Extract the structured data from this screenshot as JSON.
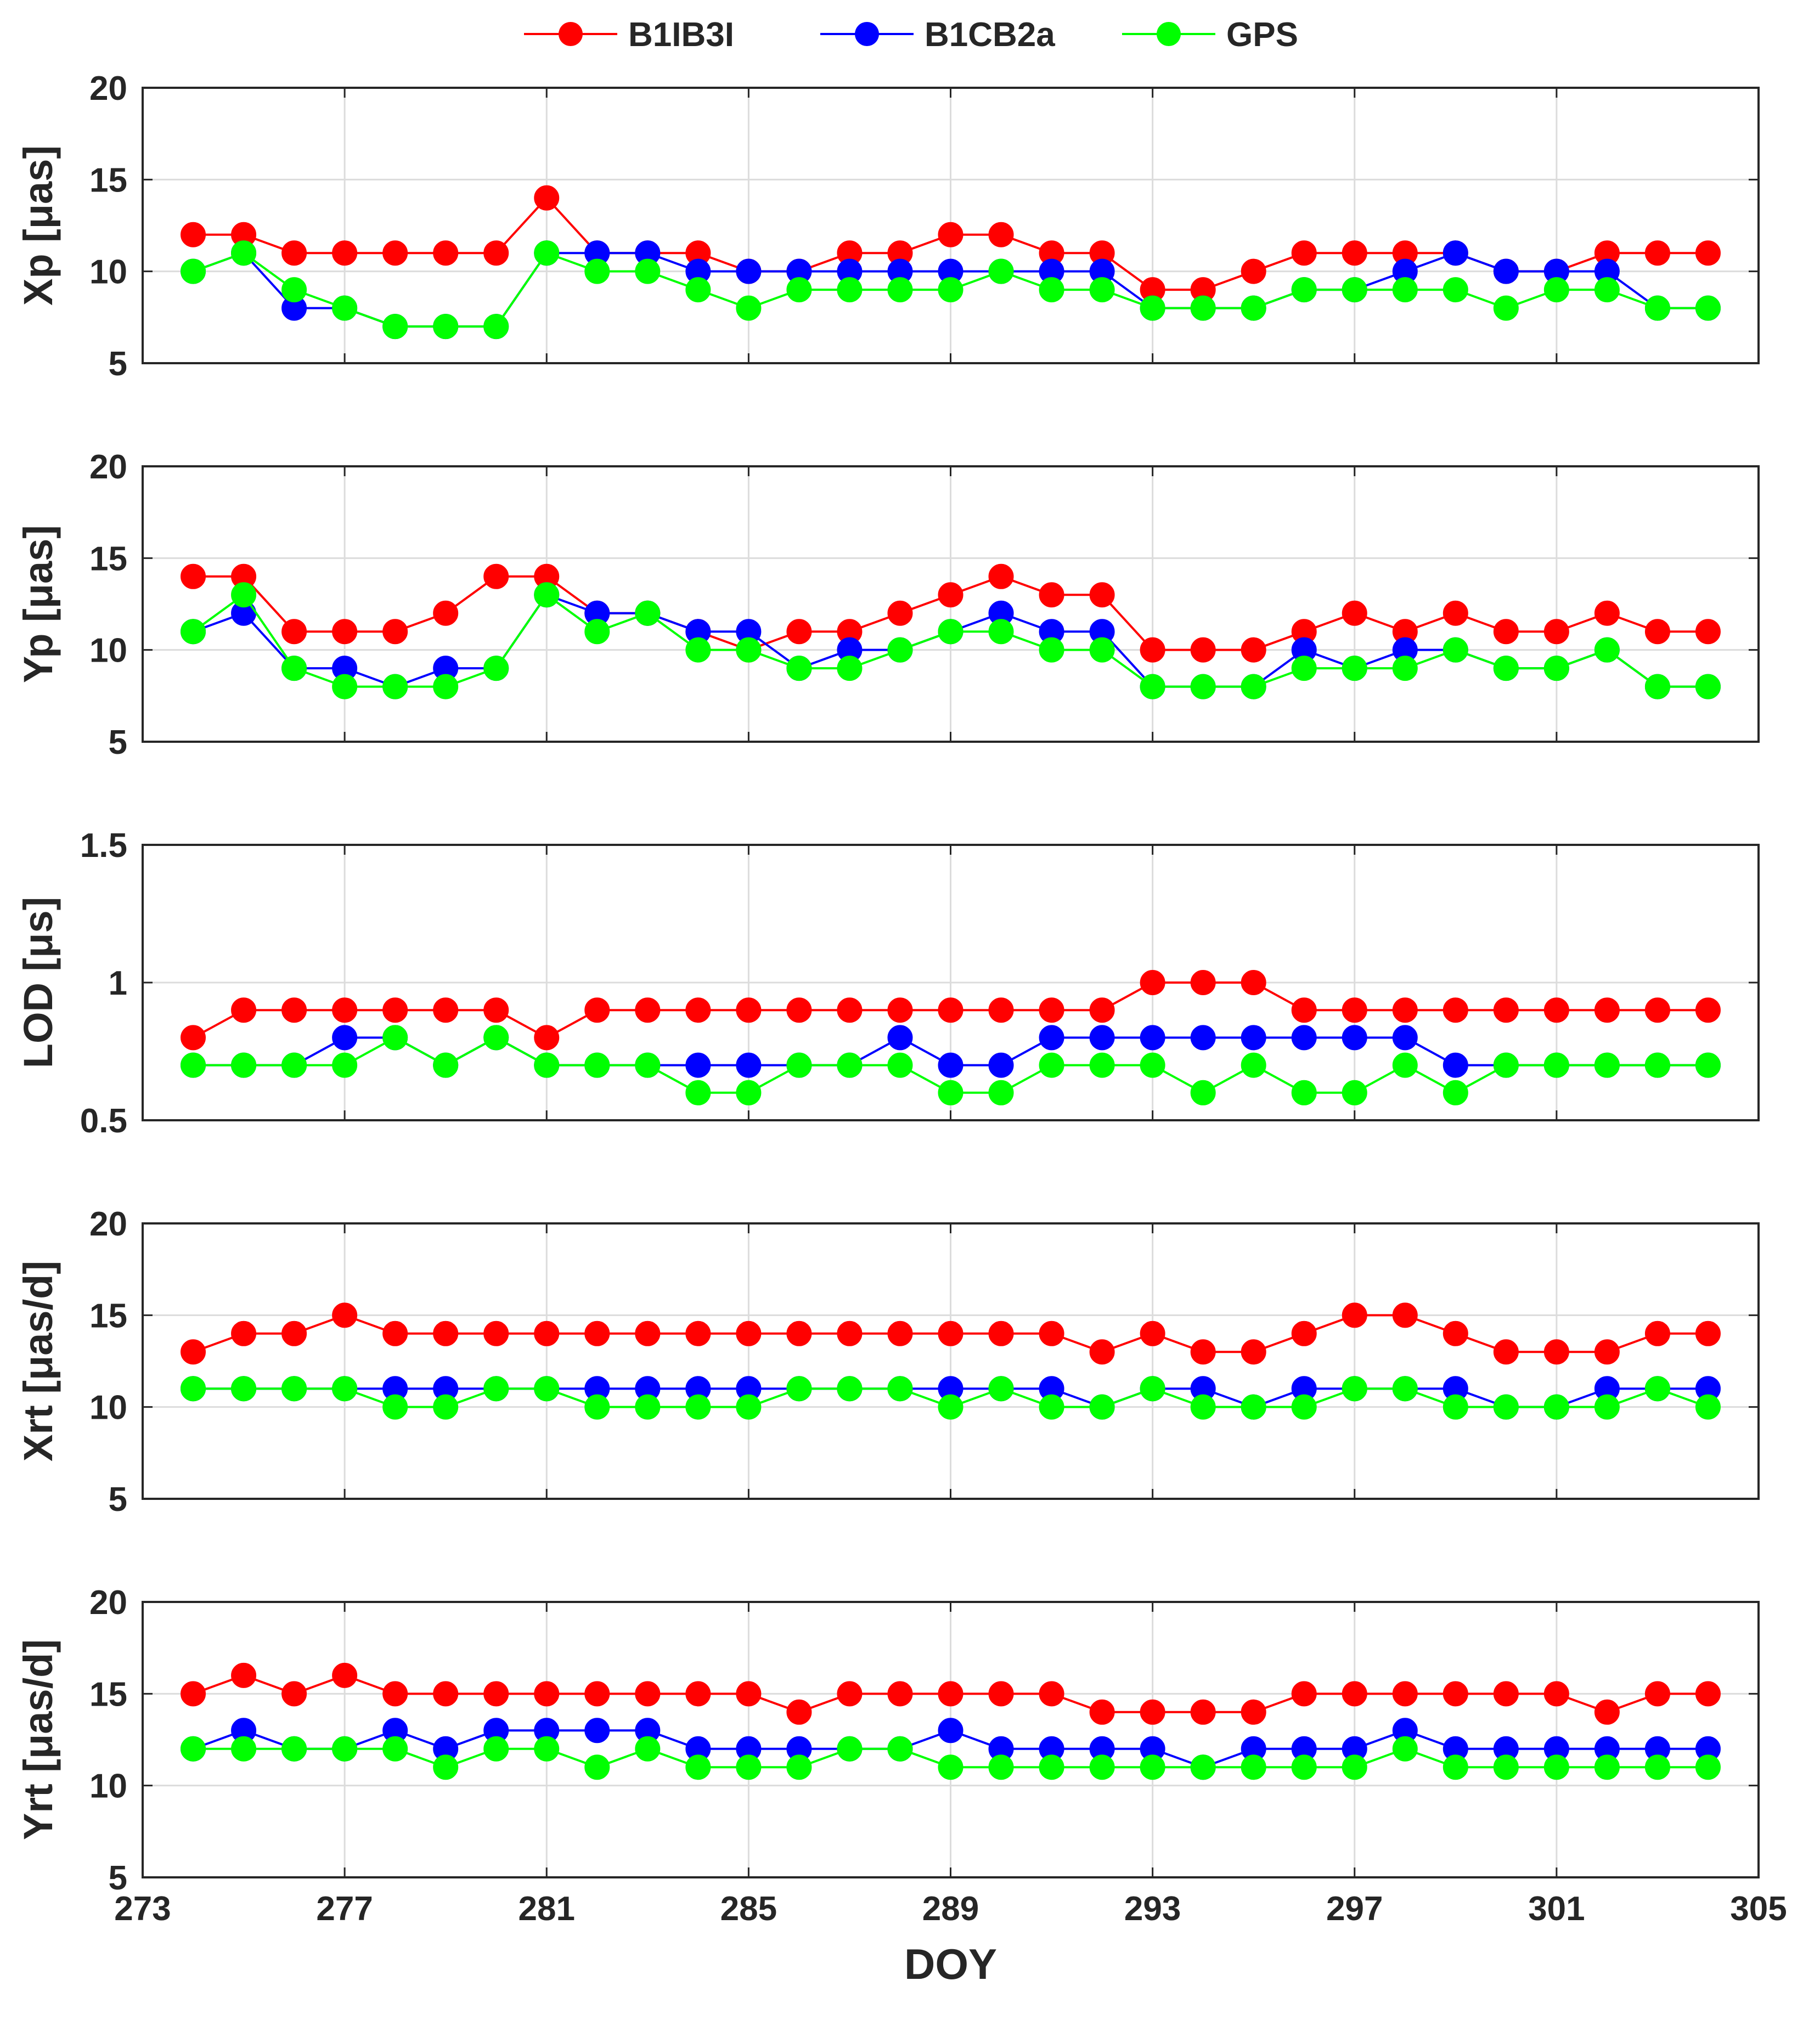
{
  "chart_data": {
    "type": "line",
    "xlabel": "DOY",
    "xlim": [
      273,
      305
    ],
    "xticks": [
      273,
      277,
      281,
      285,
      289,
      293,
      297,
      301,
      305
    ],
    "legend": {
      "placement": "top-center",
      "entries": [
        "B1IB3I",
        "B1CB2a",
        "GPS"
      ]
    },
    "series_colors": {
      "B1IB3I": "#ff0000",
      "B1CB2a": "#0000ff",
      "GPS": "#00ff00"
    },
    "x": [
      274,
      275,
      276,
      277,
      278,
      279,
      280,
      281,
      282,
      283,
      284,
      285,
      286,
      287,
      288,
      289,
      290,
      291,
      292,
      293,
      294,
      295,
      296,
      297,
      298,
      299,
      300,
      301,
      302,
      303,
      304
    ],
    "panels": [
      {
        "ylabel": "Xp [μas]",
        "ylim": [
          5,
          20
        ],
        "yticks": [
          5,
          10,
          15,
          20
        ],
        "yticklabels": [
          "5",
          "10",
          "15",
          "20"
        ],
        "series": [
          {
            "name": "B1IB3I",
            "values": [
              12,
              12,
              11,
              11,
              11,
              11,
              11,
              14,
              11,
              11,
              11,
              10,
              10,
              11,
              11,
              12,
              12,
              11,
              11,
              9,
              9,
              10,
              11,
              11,
              11,
              11,
              10,
              10,
              11,
              11,
              11
            ]
          },
          {
            "name": "B1CB2a",
            "values": [
              10,
              11,
              8,
              8,
              7,
              7,
              7,
              11,
              11,
              11,
              10,
              10,
              10,
              10,
              10,
              10,
              10,
              10,
              10,
              8,
              8,
              8,
              9,
              9,
              10,
              11,
              10,
              10,
              10,
              8,
              8
            ]
          },
          {
            "name": "GPS",
            "values": [
              10,
              11,
              9,
              8,
              7,
              7,
              7,
              11,
              10,
              10,
              9,
              8,
              9,
              9,
              9,
              9,
              10,
              9,
              9,
              8,
              8,
              8,
              9,
              9,
              9,
              9,
              8,
              9,
              9,
              8,
              8
            ]
          }
        ]
      },
      {
        "ylabel": "Yp [μas]",
        "ylim": [
          5,
          20
        ],
        "yticks": [
          5,
          10,
          15,
          20
        ],
        "yticklabels": [
          "5",
          "10",
          "15",
          "20"
        ],
        "series": [
          {
            "name": "B1IB3I",
            "values": [
              14,
              14,
              11,
              11,
              11,
              12,
              14,
              14,
              12,
              12,
              11,
              10,
              11,
              11,
              12,
              13,
              14,
              13,
              13,
              10,
              10,
              10,
              11,
              12,
              11,
              12,
              11,
              11,
              12,
              11,
              11
            ]
          },
          {
            "name": "B1CB2a",
            "values": [
              11,
              12,
              9,
              9,
              8,
              9,
              9,
              13,
              12,
              12,
              11,
              11,
              9,
              10,
              10,
              11,
              12,
              11,
              11,
              8,
              8,
              8,
              10,
              9,
              10,
              10,
              9,
              9,
              10,
              8,
              8
            ]
          },
          {
            "name": "GPS",
            "values": [
              11,
              13,
              9,
              8,
              8,
              8,
              9,
              13,
              11,
              12,
              10,
              10,
              9,
              9,
              10,
              11,
              11,
              10,
              10,
              8,
              8,
              8,
              9,
              9,
              9,
              10,
              9,
              9,
              10,
              8,
              8
            ]
          }
        ]
      },
      {
        "ylabel": "LOD [μs]",
        "ylim": [
          0.5,
          1.5
        ],
        "yticks": [
          0.5,
          1,
          1.5
        ],
        "yticklabels": [
          "0.5",
          "1",
          "1.5"
        ],
        "series": [
          {
            "name": "B1IB3I",
            "values": [
              0.8,
              0.9,
              0.9,
              0.9,
              0.9,
              0.9,
              0.9,
              0.8,
              0.9,
              0.9,
              0.9,
              0.9,
              0.9,
              0.9,
              0.9,
              0.9,
              0.9,
              0.9,
              0.9,
              1.0,
              1.0,
              1.0,
              0.9,
              0.9,
              0.9,
              0.9,
              0.9,
              0.9,
              0.9,
              0.9,
              0.9
            ]
          },
          {
            "name": "B1CB2a",
            "values": [
              0.7,
              0.7,
              0.7,
              0.8,
              0.8,
              0.7,
              0.8,
              0.7,
              0.7,
              0.7,
              0.7,
              0.7,
              0.7,
              0.7,
              0.8,
              0.7,
              0.7,
              0.8,
              0.8,
              0.8,
              0.8,
              0.8,
              0.8,
              0.8,
              0.8,
              0.7,
              0.7,
              0.7,
              0.7,
              0.7,
              0.7
            ]
          },
          {
            "name": "GPS",
            "values": [
              0.7,
              0.7,
              0.7,
              0.7,
              0.8,
              0.7,
              0.8,
              0.7,
              0.7,
              0.7,
              0.6,
              0.6,
              0.7,
              0.7,
              0.7,
              0.6,
              0.6,
              0.7,
              0.7,
              0.7,
              0.6,
              0.7,
              0.6,
              0.6,
              0.7,
              0.6,
              0.7,
              0.7,
              0.7,
              0.7,
              0.7
            ]
          }
        ]
      },
      {
        "ylabel": "Xrt [μas/d]",
        "ylim": [
          5,
          20
        ],
        "yticks": [
          5,
          10,
          15,
          20
        ],
        "yticklabels": [
          "5",
          "10",
          "15",
          "20"
        ],
        "series": [
          {
            "name": "B1IB3I",
            "values": [
              13,
              14,
              14,
              15,
              14,
              14,
              14,
              14,
              14,
              14,
              14,
              14,
              14,
              14,
              14,
              14,
              14,
              14,
              13,
              14,
              13,
              13,
              14,
              15,
              15,
              14,
              13,
              13,
              13,
              14,
              14
            ]
          },
          {
            "name": "B1CB2a",
            "values": [
              11,
              11,
              11,
              11,
              11,
              11,
              11,
              11,
              11,
              11,
              11,
              11,
              11,
              11,
              11,
              11,
              11,
              11,
              10,
              11,
              11,
              10,
              11,
              11,
              11,
              11,
              10,
              10,
              11,
              11,
              11
            ]
          },
          {
            "name": "GPS",
            "values": [
              11,
              11,
              11,
              11,
              10,
              10,
              11,
              11,
              10,
              10,
              10,
              10,
              11,
              11,
              11,
              10,
              11,
              10,
              10,
              11,
              10,
              10,
              10,
              11,
              11,
              10,
              10,
              10,
              10,
              11,
              10
            ]
          }
        ]
      },
      {
        "ylabel": "Yrt [μas/d]",
        "ylim": [
          5,
          20
        ],
        "yticks": [
          5,
          10,
          15,
          20
        ],
        "yticklabels": [
          "5",
          "10",
          "15",
          "20"
        ],
        "series": [
          {
            "name": "B1IB3I",
            "values": [
              15,
              16,
              15,
              16,
              15,
              15,
              15,
              15,
              15,
              15,
              15,
              15,
              14,
              15,
              15,
              15,
              15,
              15,
              14,
              14,
              14,
              14,
              15,
              15,
              15,
              15,
              15,
              15,
              14,
              15,
              15
            ]
          },
          {
            "name": "B1CB2a",
            "values": [
              12,
              13,
              12,
              12,
              13,
              12,
              13,
              13,
              13,
              13,
              12,
              12,
              12,
              12,
              12,
              13,
              12,
              12,
              12,
              12,
              11,
              12,
              12,
              12,
              13,
              12,
              12,
              12,
              12,
              12,
              12
            ]
          },
          {
            "name": "GPS",
            "values": [
              12,
              12,
              12,
              12,
              12,
              11,
              12,
              12,
              11,
              12,
              11,
              11,
              11,
              12,
              12,
              11,
              11,
              11,
              11,
              11,
              11,
              11,
              11,
              11,
              12,
              11,
              11,
              11,
              11,
              11,
              11
            ]
          }
        ]
      }
    ]
  }
}
